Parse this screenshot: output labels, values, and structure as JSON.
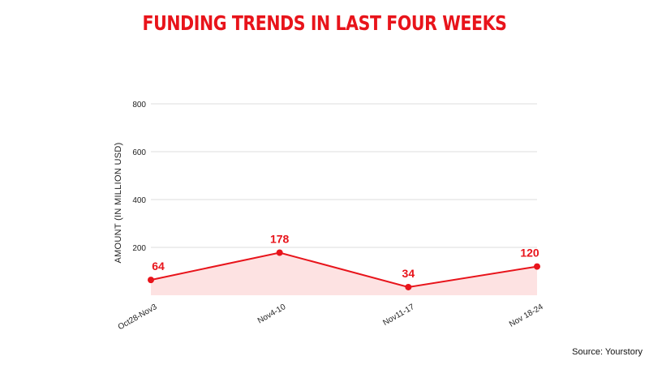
{
  "colors": {
    "accent": "#e8141b",
    "area_fill": "#fde2e2",
    "grid": "#dddddd"
  },
  "source": "Source: Yourstory",
  "chart_data": {
    "type": "area",
    "title": "FUNDING TRENDS IN LAST FOUR WEEKS",
    "xlabel": "",
    "ylabel": "AMOUNT (IN MILLION USD)",
    "categories": [
      "Oct28-Nov3",
      "Nov4-10",
      "Nov11-17",
      "Nov 18-24"
    ],
    "values": [
      64,
      178,
      34,
      120
    ],
    "ylim": [
      0,
      800
    ],
    "yticks": [
      200,
      400,
      600,
      800
    ],
    "grid": true,
    "data_labels": [
      "64",
      "178",
      "34",
      "120"
    ]
  }
}
